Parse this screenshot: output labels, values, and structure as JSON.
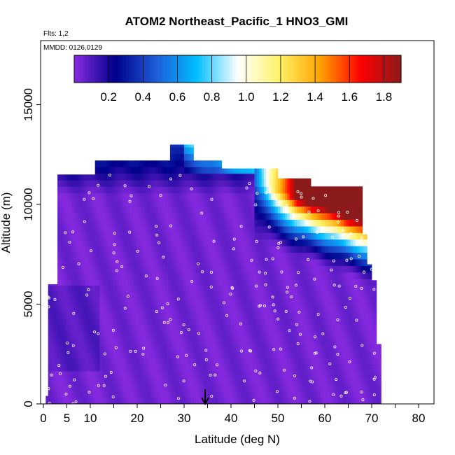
{
  "chart_data": {
    "type": "heatmap",
    "title": "ATOM2 Northeast_Pacific_1 HNO3_GMI",
    "flights_label": "Flts: 1,2",
    "dates_label": "MMDD: 0126,0129",
    "xlabel": "Latitude (deg N)",
    "ylabel": "Altitude (m)",
    "xlim": [
      0,
      85
    ],
    "ylim": [
      0,
      17500
    ],
    "x_tick_labels": [
      "0",
      "5",
      "10",
      "20",
      "30",
      "40",
      "50",
      "60",
      "70",
      "80"
    ],
    "x_ticks": [
      0,
      5,
      10,
      20,
      30,
      40,
      50,
      60,
      70,
      80
    ],
    "y_tick_labels": [
      "0",
      "5000",
      "10000",
      "15000"
    ],
    "y_ticks": [
      0,
      5000,
      10000,
      15000
    ],
    "colorbar": {
      "range": [
        0,
        1.9
      ],
      "tick_values": [
        0.2,
        0.4,
        0.6,
        0.8,
        1.0,
        1.2,
        1.4,
        1.6,
        1.8
      ],
      "tick_labels": [
        "0.2",
        "0.4",
        "0.6",
        "0.8",
        "1.0",
        "1.2",
        "1.4",
        "1.6",
        "1.8"
      ],
      "colors": [
        "#8a2be2",
        "#00008b",
        "#1e5bd8",
        "#00bfff",
        "#ffffff",
        "#fff36b",
        "#ffa500",
        "#ff0000",
        "#8b1a1a"
      ]
    },
    "marker_latitude": 34.5,
    "grid": false,
    "legend": "colorbar top"
  }
}
